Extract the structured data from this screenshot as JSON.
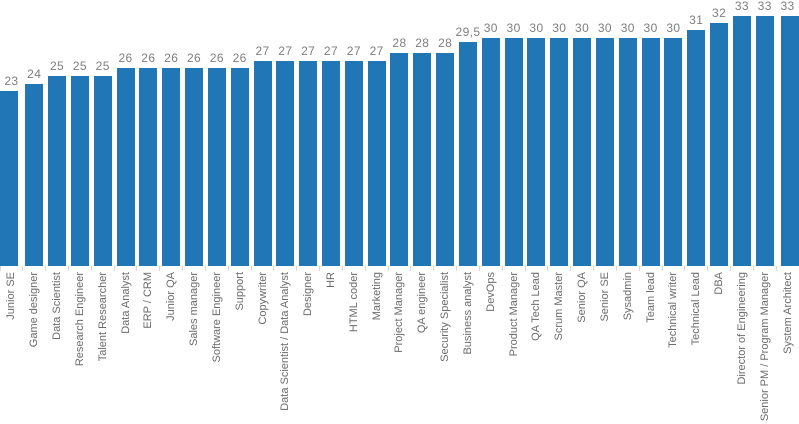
{
  "chart_data": {
    "type": "bar",
    "title": "",
    "xlabel": "",
    "ylabel": "",
    "ylim": [
      0,
      35
    ],
    "grid": false,
    "legend_position": "none",
    "value_labels_position": "above-bars",
    "category_label_orientation": "rotated-90-bottom-up",
    "bar_color": "#2176B5",
    "value_label_color": "#7E7E7E",
    "category_label_color": "#6B6B6B",
    "tick_mark_color": "#D9D9D9",
    "categories": [
      "Junior SE",
      "Game designer",
      "Data Scientist",
      "Research Engineer",
      "Talent Researcher",
      "Data Analyst",
      "ERP / CRM",
      "Junior QA",
      "Sales manager",
      "Software Engineer",
      "Support",
      "Copywriter",
      "Data Scientist / Data Analyst",
      "Designer",
      "HR",
      "HTML coder",
      "Marketing",
      "Project Manager",
      "QA engineer",
      "Security Specialist",
      "Business analyst",
      "DevOps",
      "Product Manager",
      "QA Tech Lead",
      "Scrum Master",
      "Senior QA",
      "Senior SE",
      "Sysadmin",
      "Team lead",
      "Technical writer",
      "Technical Lead",
      "DBA",
      "Director of Engineering",
      "Senior PM / Program Manager",
      "System Architect"
    ],
    "values": [
      23,
      24,
      25,
      25,
      25,
      26,
      26,
      26,
      26,
      26,
      26,
      27,
      27,
      27,
      27,
      27,
      27,
      28,
      28,
      28,
      29.5,
      30,
      30,
      30,
      30,
      30,
      30,
      30,
      30,
      30,
      31,
      32,
      33,
      33,
      33
    ],
    "value_labels": [
      "23",
      "24",
      "25",
      "25",
      "25",
      "26",
      "26",
      "26",
      "26",
      "26",
      "26",
      "27",
      "27",
      "27",
      "27",
      "27",
      "27",
      "28",
      "28",
      "28",
      "29,5",
      "30",
      "30",
      "30",
      "30",
      "30",
      "30",
      "30",
      "30",
      "30",
      "31",
      "32",
      "33",
      "33",
      "33"
    ]
  }
}
